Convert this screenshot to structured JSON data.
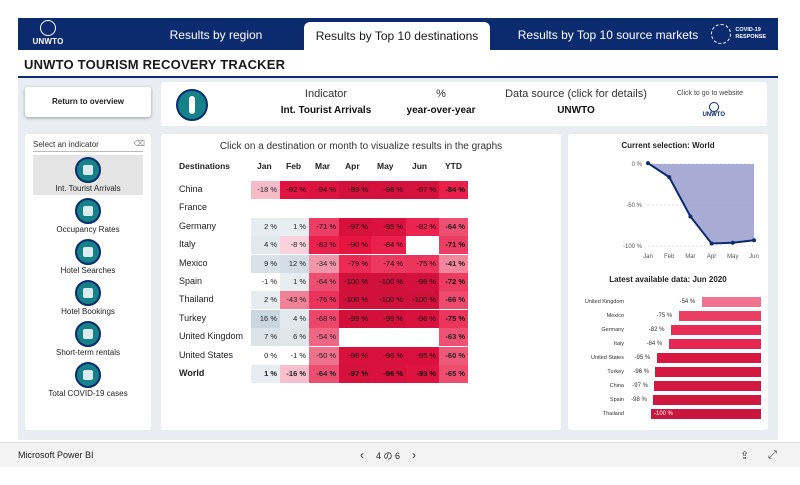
{
  "nav": {
    "logo_text": "UNWTO",
    "tabs": [
      {
        "label": "Results by region"
      },
      {
        "label": "Results by Top 10 destinations"
      },
      {
        "label": "Results by Top 10 source markets"
      }
    ],
    "covid_logo_line1": "COVID-19",
    "covid_logo_line2": "RESPONSE"
  },
  "title": "UNWTO TOURISM RECOVERY TRACKER",
  "return_button": "Return to overview",
  "indicator": {
    "indicator_label": "Indicator",
    "indicator_value": "Int. Tourist Arrivals",
    "unit_label": "%",
    "unit_value": "year-over-year",
    "source_label": "Data source (click for details)",
    "source_value": "UNWTO",
    "website_hint": "Click to go to website",
    "website_logo_text": "UNWTO"
  },
  "selector": {
    "header": "Select an indicator",
    "items": [
      {
        "label": "Int. Tourist Arrivals",
        "icon": "tourist-icon",
        "active": true
      },
      {
        "label": "Occupancy Rates",
        "icon": "building-icon",
        "active": false
      },
      {
        "label": "Hotel Searches",
        "icon": "search-icon",
        "active": false
      },
      {
        "label": "Hotel Bookings",
        "icon": "calendar-icon",
        "active": false
      },
      {
        "label": "Short-term rentals",
        "icon": "house-icon",
        "active": false
      },
      {
        "label": "Total COVID-19 cases",
        "icon": "virus-icon",
        "active": false
      }
    ]
  },
  "matrix": {
    "title": "Click on a destination or month to visualize results in the graphs",
    "columns": [
      "Destinations",
      "Jan",
      "Feb",
      "Mar",
      "Apr",
      "May",
      "Jun",
      "YTD"
    ],
    "rows": [
      {
        "name": "China",
        "cells": [
          "-18 %",
          "-92 %",
          "-94 %",
          "-99 %",
          "-98 %",
          "-97 %",
          "-84 %"
        ],
        "values": [
          -18,
          -92,
          -94,
          -99,
          -98,
          -97,
          -84
        ]
      },
      {
        "name": "France",
        "cells": [
          "",
          "",
          "",
          "",
          "",
          "",
          ""
        ],
        "values": [
          null,
          null,
          null,
          null,
          null,
          null,
          null
        ]
      },
      {
        "name": "Germany",
        "cells": [
          "2 %",
          "1 %",
          "-71 %",
          "-97 %",
          "-95 %",
          "-82 %",
          "-64 %"
        ],
        "values": [
          2,
          1,
          -71,
          -97,
          -95,
          -82,
          -64
        ]
      },
      {
        "name": "Italy",
        "cells": [
          "4 %",
          "-8 %",
          "-83 %",
          "-90 %",
          "-84 %",
          "",
          "-71 %"
        ],
        "values": [
          4,
          -8,
          -83,
          -90,
          -84,
          null,
          -71
        ]
      },
      {
        "name": "Mexico",
        "cells": [
          "9 %",
          "12 %",
          "-34 %",
          "-79 %",
          "-74 %",
          "-75 %",
          "-41 %"
        ],
        "values": [
          9,
          12,
          -34,
          -79,
          -74,
          -75,
          -41
        ]
      },
      {
        "name": "Spain",
        "cells": [
          "-1 %",
          "1 %",
          "-64 %",
          "-100 %",
          "-100 %",
          "-98 %",
          "-72 %"
        ],
        "values": [
          -1,
          1,
          -64,
          -100,
          -100,
          -98,
          -72
        ]
      },
      {
        "name": "Thailand",
        "cells": [
          "2 %",
          "-43 %",
          "-76 %",
          "-100 %",
          "-100 %",
          "-100 %",
          "-66 %"
        ],
        "values": [
          2,
          -43,
          -76,
          -100,
          -100,
          -100,
          -66
        ]
      },
      {
        "name": "Turkey",
        "cells": [
          "16 %",
          "4 %",
          "-68 %",
          "-99 %",
          "-99 %",
          "-96 %",
          "-75 %"
        ],
        "values": [
          16,
          4,
          -68,
          -99,
          -99,
          -96,
          -75
        ]
      },
      {
        "name": "United Kingdom",
        "cells": [
          "7 %",
          "6 %",
          "-54 %",
          "",
          "",
          "",
          "-63 %"
        ],
        "values": [
          7,
          6,
          -54,
          null,
          null,
          null,
          -63
        ]
      },
      {
        "name": "United States",
        "cells": [
          "0 %",
          "-1 %",
          "-50 %",
          "-96 %",
          "-96 %",
          "-95 %",
          "-60 %"
        ],
        "values": [
          0,
          -1,
          -50,
          -96,
          -96,
          -95,
          -60
        ]
      },
      {
        "name": "World",
        "cells": [
          "1 %",
          "-16 %",
          "-64 %",
          "-97 %",
          "-96 %",
          "-93 %",
          "-65 %"
        ],
        "values": [
          1,
          -16,
          -64,
          -97,
          -96,
          -93,
          -65
        ],
        "total": true
      }
    ]
  },
  "right": {
    "selection_title": "Current selection: World",
    "latest_title": "Latest available data: Jun 2020"
  },
  "chart_data": [
    {
      "type": "area",
      "title": "Current selection: World",
      "x": [
        "Jan",
        "Feb",
        "Mar",
        "Apr",
        "May",
        "Jun"
      ],
      "series": [
        {
          "values": [
            1,
            -16,
            -64,
            -97,
            -96,
            -93
          ]
        }
      ],
      "ylim": [
        -100,
        0
      ],
      "yticks": [
        "0 %",
        "-50 %",
        "-100 %"
      ],
      "colors": {
        "line": "#0c2a6e",
        "fill": "#9fa3cf"
      }
    },
    {
      "type": "bar",
      "orientation": "horizontal",
      "title": "Latest available data: Jun 2020",
      "categories": [
        "United Kingdom",
        "Mexico",
        "Germany",
        "Italy",
        "United States",
        "Turkey",
        "China",
        "Spain",
        "Thailand"
      ],
      "values": [
        -54,
        -75,
        -82,
        -84,
        -95,
        -96,
        -97,
        -98,
        -100
      ],
      "labels": [
        "-54 %",
        "-75 %",
        "-82 %",
        "-84 %",
        "-95 %",
        "-96 %",
        "-97 %",
        "-98 %",
        "-100 %"
      ],
      "xlim": [
        -100,
        0
      ]
    }
  ],
  "bottom": {
    "app_name": "Microsoft Power BI",
    "page_indicator": "4 の 6"
  },
  "colors": {
    "nav_bg": "#0c2a6e",
    "accent_red": "#d6153f",
    "teal": "#15828a"
  }
}
